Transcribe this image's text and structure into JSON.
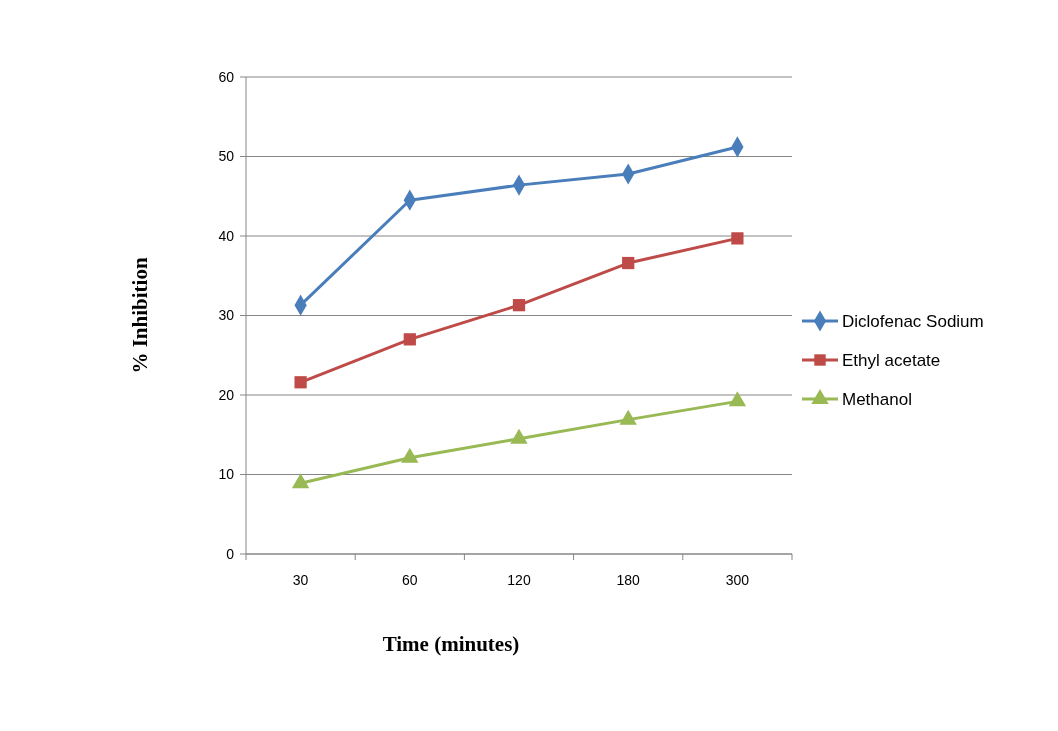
{
  "chart_data": {
    "type": "line",
    "xlabel": "Time (minutes)",
    "ylabel": "% Inhibition",
    "categories": [
      "30",
      "60",
      "120",
      "180",
      "300"
    ],
    "ylim": [
      0,
      60
    ],
    "yticks": [
      0,
      10,
      20,
      30,
      40,
      50,
      60
    ],
    "grid": "y",
    "legend": "right",
    "series": [
      {
        "name": "Diclofenac Sodium",
        "color": "#4a7ebb",
        "marker": "diamond",
        "values": [
          31.3,
          44.5,
          46.4,
          47.8,
          51.2
        ]
      },
      {
        "name": "Ethyl acetate",
        "color": "#be4b48",
        "marker": "square",
        "values": [
          21.6,
          27.0,
          31.3,
          36.6,
          39.7
        ]
      },
      {
        "name": "Methanol",
        "color": "#98b954",
        "marker": "triangle",
        "values": [
          8.9,
          12.1,
          14.5,
          16.9,
          19.2
        ]
      }
    ]
  }
}
